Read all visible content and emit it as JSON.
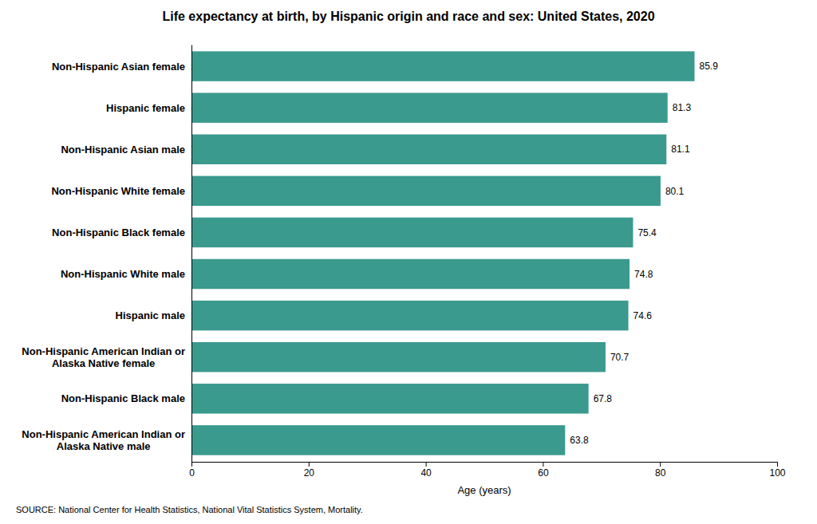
{
  "chart_data": {
    "type": "bar",
    "orientation": "horizontal",
    "title": "Life expectancy at birth, by Hispanic origin and race and sex: United States, 2020",
    "categories": [
      "Non-Hispanic American Indian or\nAlaska Native male",
      "Non-Hispanic Black male",
      "Non-Hispanic American Indian or\nAlaska Native female",
      "Hispanic male",
      "Non-Hispanic White male",
      "Non-Hispanic Black female",
      "Non-Hispanic White female",
      "Non-Hispanic Asian male",
      "Hispanic female",
      "Non-Hispanic Asian female"
    ],
    "values": [
      63.8,
      67.8,
      70.7,
      74.6,
      74.8,
      75.4,
      80.1,
      81.1,
      81.3,
      85.9
    ],
    "color": "#3a9a8e",
    "xlabel": "Age (years)",
    "xlim": [
      0,
      100
    ],
    "xticks": [
      0,
      20,
      40,
      60,
      80,
      100
    ],
    "data_labels": true,
    "grid": false,
    "source": "SOURCE: National Center for Health Statistics, National Vital Statistics System, Mortality."
  }
}
